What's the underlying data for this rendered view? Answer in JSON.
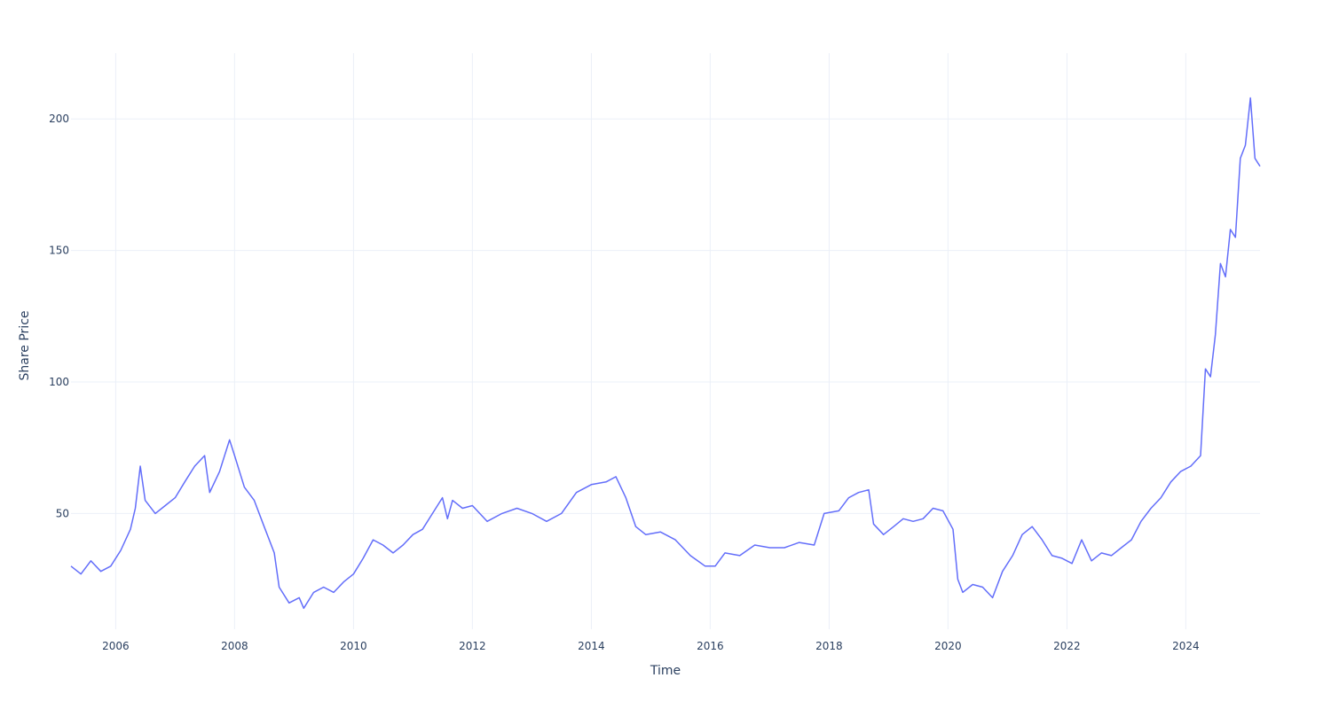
{
  "chart_data": {
    "type": "line",
    "title": "",
    "xlabel": "Time",
    "ylabel": "Share Price",
    "x_tick_labels": [
      "2006",
      "2008",
      "2010",
      "2012",
      "2014",
      "2016",
      "2018",
      "2020",
      "2022",
      "2024"
    ],
    "y_tick_labels": [
      "50",
      "100",
      "150",
      "200"
    ],
    "xlim": [
      "2005-04-01",
      "2025-04-01"
    ],
    "ylim": [
      6,
      225
    ],
    "grid": true,
    "legend": "none",
    "colors": {
      "line": "#636efa",
      "grid": "#ebf0f8",
      "text": "#2a3f5f"
    },
    "series": [
      {
        "x": [
          "2005-04-01",
          "2005-06-01",
          "2005-08-01",
          "2005-10-01",
          "2005-12-01",
          "2006-02-01",
          "2006-04-01",
          "2006-05-01",
          "2006-06-01",
          "2006-07-01",
          "2006-09-01",
          "2006-11-01",
          "2007-01-01",
          "2007-03-01",
          "2007-05-01",
          "2007-07-01",
          "2007-08-01",
          "2007-10-01",
          "2007-12-01",
          "2008-01-01",
          "2008-03-01",
          "2008-05-01",
          "2008-07-01",
          "2008-09-01",
          "2008-10-01",
          "2008-12-01",
          "2009-02-01",
          "2009-03-01",
          "2009-05-01",
          "2009-07-01",
          "2009-09-01",
          "2009-11-01",
          "2010-01-01",
          "2010-03-01",
          "2010-05-01",
          "2010-07-01",
          "2010-09-01",
          "2010-11-01",
          "2011-01-01",
          "2011-03-01",
          "2011-05-01",
          "2011-07-01",
          "2011-08-01",
          "2011-09-01",
          "2011-11-01",
          "2012-01-01",
          "2012-04-01",
          "2012-07-01",
          "2012-10-01",
          "2013-01-01",
          "2013-04-01",
          "2013-07-01",
          "2013-10-01",
          "2014-01-01",
          "2014-04-01",
          "2014-06-01",
          "2014-08-01",
          "2014-10-01",
          "2014-12-01",
          "2015-03-01",
          "2015-06-01",
          "2015-09-01",
          "2015-12-01",
          "2016-02-01",
          "2016-04-01",
          "2016-07-01",
          "2016-10-01",
          "2017-01-01",
          "2017-04-01",
          "2017-07-01",
          "2017-10-01",
          "2017-12-01",
          "2018-03-01",
          "2018-05-01",
          "2018-07-01",
          "2018-09-01",
          "2018-10-01",
          "2018-12-01",
          "2019-02-01",
          "2019-04-01",
          "2019-06-01",
          "2019-08-01",
          "2019-10-01",
          "2019-12-01",
          "2020-02-01",
          "2020-03-01",
          "2020-04-01",
          "2020-06-01",
          "2020-08-01",
          "2020-10-01",
          "2020-12-01",
          "2021-02-01",
          "2021-04-01",
          "2021-06-01",
          "2021-08-01",
          "2021-10-01",
          "2021-12-01",
          "2022-02-01",
          "2022-04-01",
          "2022-06-01",
          "2022-08-01",
          "2022-10-01",
          "2022-12-01",
          "2023-02-01",
          "2023-04-01",
          "2023-06-01",
          "2023-08-01",
          "2023-10-01",
          "2023-12-01",
          "2024-02-01",
          "2024-04-01",
          "2024-05-01",
          "2024-06-01",
          "2024-07-01",
          "2024-08-01",
          "2024-09-01",
          "2024-10-01",
          "2024-11-01",
          "2024-12-01",
          "2025-01-01",
          "2025-02-01",
          "2025-03-01",
          "2025-04-01"
        ],
        "values": [
          30,
          27,
          32,
          28,
          30,
          36,
          44,
          52,
          68,
          55,
          50,
          53,
          56,
          62,
          68,
          72,
          58,
          66,
          78,
          72,
          60,
          55,
          45,
          35,
          22,
          16,
          18,
          14,
          20,
          22,
          20,
          24,
          27,
          33,
          40,
          38,
          35,
          38,
          42,
          44,
          50,
          56,
          48,
          55,
          52,
          53,
          47,
          50,
          52,
          50,
          47,
          50,
          58,
          61,
          62,
          64,
          56,
          45,
          42,
          43,
          40,
          34,
          30,
          30,
          35,
          34,
          38,
          37,
          37,
          39,
          38,
          50,
          51,
          56,
          58,
          59,
          46,
          42,
          45,
          48,
          47,
          48,
          52,
          51,
          44,
          25,
          20,
          23,
          22,
          18,
          28,
          34,
          42,
          45,
          40,
          34,
          33,
          31,
          40,
          32,
          35,
          34,
          37,
          40,
          47,
          52,
          56,
          62,
          66,
          68,
          72,
          105,
          102,
          118,
          145,
          140,
          158,
          155,
          185,
          190,
          208,
          185,
          182
        ]
      }
    ]
  }
}
